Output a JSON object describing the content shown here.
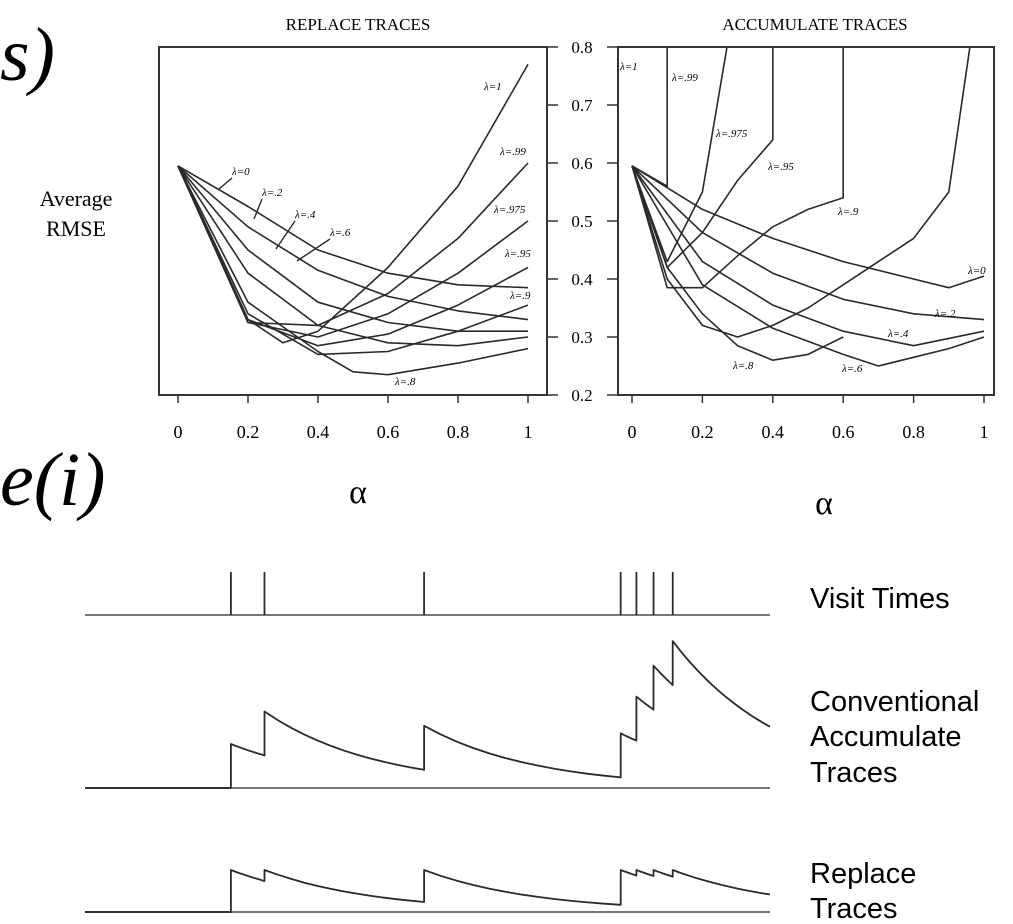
{
  "fragments": {
    "top": "s)",
    "middle": "e(i)"
  },
  "chart_data": [
    {
      "type": "line",
      "title": "REPLACE TRACES",
      "xlabel": "α",
      "ylabel": "Average RMSE",
      "xlim": [
        0,
        1
      ],
      "ylim": [
        0.2,
        0.8
      ],
      "x_ticks": [
        "0",
        "0.2",
        "0.4",
        "0.6",
        "0.8",
        "1"
      ],
      "y_ticks": [
        "0.2",
        "0.3",
        "0.4",
        "0.5",
        "0.6",
        "0.7",
        "0.8"
      ],
      "series": [
        {
          "name": "λ=0",
          "x": [
            0,
            0.2,
            0.4,
            0.6,
            0.8,
            1
          ],
          "y": [
            0.595,
            0.525,
            0.45,
            0.41,
            0.39,
            0.385
          ]
        },
        {
          "name": "λ=.2",
          "x": [
            0,
            0.2,
            0.4,
            0.6,
            0.8,
            1
          ],
          "y": [
            0.595,
            0.49,
            0.415,
            0.37,
            0.345,
            0.33
          ]
        },
        {
          "name": "λ=.4",
          "x": [
            0,
            0.2,
            0.4,
            0.6,
            0.8,
            1
          ],
          "y": [
            0.595,
            0.45,
            0.36,
            0.325,
            0.31,
            0.31
          ]
        },
        {
          "name": "λ=.6",
          "x": [
            0,
            0.2,
            0.4,
            0.6,
            0.8,
            1
          ],
          "y": [
            0.595,
            0.41,
            0.32,
            0.29,
            0.285,
            0.3
          ]
        },
        {
          "name": "λ=.8",
          "x": [
            0,
            0.2,
            0.4,
            0.5,
            0.6,
            0.8,
            1
          ],
          "y": [
            0.595,
            0.36,
            0.275,
            0.24,
            0.235,
            0.255,
            0.28
          ]
        },
        {
          "name": "λ=.9",
          "x": [
            0,
            0.2,
            0.4,
            0.6,
            0.8,
            1
          ],
          "y": [
            0.595,
            0.34,
            0.27,
            0.275,
            0.31,
            0.355
          ]
        },
        {
          "name": "λ=.95",
          "x": [
            0,
            0.2,
            0.4,
            0.6,
            0.8,
            1
          ],
          "y": [
            0.595,
            0.33,
            0.285,
            0.305,
            0.355,
            0.42
          ]
        },
        {
          "name": "λ=.975",
          "x": [
            0,
            0.2,
            0.4,
            0.6,
            0.8,
            1
          ],
          "y": [
            0.595,
            0.325,
            0.3,
            0.34,
            0.41,
            0.5
          ]
        },
        {
          "name": "λ=.99",
          "x": [
            0,
            0.2,
            0.4,
            0.6,
            0.8,
            1
          ],
          "y": [
            0.595,
            0.325,
            0.32,
            0.375,
            0.47,
            0.6
          ]
        },
        {
          "name": "λ=1",
          "x": [
            0,
            0.2,
            0.3,
            0.4,
            0.6,
            0.8,
            1
          ],
          "y": [
            0.595,
            0.33,
            0.29,
            0.31,
            0.42,
            0.56,
            0.77
          ]
        }
      ]
    },
    {
      "type": "line",
      "title": "ACCUMULATE TRACES",
      "xlabel": "α",
      "ylabel": "",
      "xlim": [
        0,
        1
      ],
      "ylim": [
        0.2,
        0.8
      ],
      "x_ticks": [
        "0",
        "0.2",
        "0.4",
        "0.6",
        "0.8",
        "1"
      ],
      "series": [
        {
          "name": "λ=0",
          "x": [
            0,
            0.2,
            0.4,
            0.6,
            0.8,
            0.9,
            1
          ],
          "y": [
            0.595,
            0.52,
            0.47,
            0.43,
            0.4,
            0.385,
            0.405
          ]
        },
        {
          "name": "λ=.2",
          "x": [
            0,
            0.2,
            0.4,
            0.6,
            0.8,
            1
          ],
          "y": [
            0.595,
            0.48,
            0.41,
            0.365,
            0.34,
            0.33
          ]
        },
        {
          "name": "λ=.4",
          "x": [
            0,
            0.2,
            0.4,
            0.6,
            0.8,
            1
          ],
          "y": [
            0.595,
            0.43,
            0.355,
            0.31,
            0.285,
            0.31
          ]
        },
        {
          "name": "λ=.6",
          "x": [
            0,
            0.2,
            0.4,
            0.6,
            0.7,
            0.8,
            0.9,
            1
          ],
          "y": [
            0.595,
            0.39,
            0.315,
            0.27,
            0.25,
            0.265,
            0.28,
            0.3
          ]
        },
        {
          "name": "λ=.8",
          "x": [
            0,
            0.1,
            0.2,
            0.3,
            0.4,
            0.5,
            0.6
          ],
          "y": [
            0.595,
            0.42,
            0.34,
            0.285,
            0.26,
            0.27,
            0.3
          ]
        },
        {
          "name": "λ=.9",
          "x": [
            0,
            0.1,
            0.2,
            0.3,
            0.4,
            0.5,
            0.6,
            0.7,
            0.8,
            0.9,
            0.96
          ],
          "y": [
            0.595,
            0.4,
            0.32,
            0.3,
            0.32,
            0.35,
            0.39,
            0.43,
            0.47,
            0.55,
            0.8
          ]
        },
        {
          "name": "λ=.95",
          "x": [
            0,
            0.1,
            0.2,
            0.3,
            0.4,
            0.5,
            0.6,
            0.6,
            0.6
          ],
          "y": [
            0.595,
            0.385,
            0.385,
            0.44,
            0.49,
            0.52,
            0.54,
            0.7,
            0.8
          ]
        },
        {
          "name": "λ=.975",
          "x": [
            0,
            0.1,
            0.2,
            0.3,
            0.4,
            0.4
          ],
          "y": [
            0.595,
            0.42,
            0.48,
            0.57,
            0.64,
            0.8
          ]
        },
        {
          "name": "λ=.99",
          "x": [
            0,
            0.1,
            0.2,
            0.27
          ],
          "y": [
            0.595,
            0.43,
            0.55,
            0.8
          ]
        },
        {
          "name": "λ=1",
          "x": [
            0,
            0.1,
            0.1
          ],
          "y": [
            0.595,
            0.56,
            0.8
          ]
        }
      ]
    }
  ],
  "labels": {
    "replace": [
      "λ=0",
      "λ=.2",
      "λ=.4",
      "λ=.6",
      "λ=.8",
      "λ=.9",
      "λ=.95",
      "λ=.975",
      "λ=.99",
      "λ=1"
    ],
    "accumulate": [
      "λ=1",
      "λ=.99",
      "λ=.975",
      "λ=.95",
      "λ=.9",
      "λ=0",
      "λ=.2",
      "λ=.4",
      "λ=.6",
      "λ=.8"
    ]
  },
  "y_ticks_shared": [
    "0.2",
    "0.3",
    "0.4",
    "0.5",
    "0.6",
    "0.7",
    "0.8"
  ],
  "traces_diagram": {
    "visit_times": [
      0.213,
      0.262,
      0.495,
      0.782,
      0.805,
      0.83,
      0.858
    ],
    "rows": [
      {
        "name": "Visit Times"
      },
      {
        "name": "Conventional Accumulate Traces",
        "lines": [
          "Conventional",
          "Accumulate",
          "Traces"
        ]
      },
      {
        "name": "Replace Traces",
        "lines": [
          "Replace",
          "Traces"
        ]
      }
    ]
  }
}
